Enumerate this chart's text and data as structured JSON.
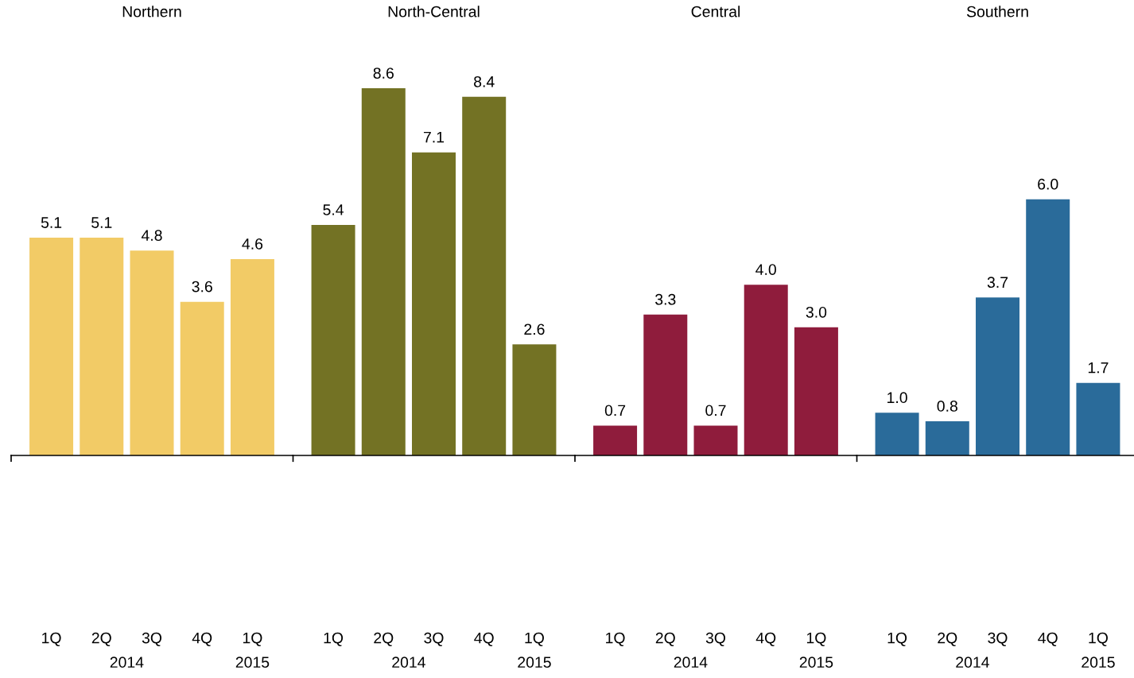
{
  "chart_data": [
    {
      "type": "bar",
      "title": "Northern",
      "categories": [
        "1Q",
        "2Q",
        "3Q",
        "4Q",
        "1Q"
      ],
      "values": [
        5.1,
        5.1,
        4.8,
        3.6,
        4.6
      ],
      "value_labels": [
        "5.1",
        "5.1",
        "4.8",
        "3.6",
        "4.6"
      ],
      "color": "#f2cb66",
      "annotations": [
        "2014",
        "2015"
      ],
      "tick_labels": "x",
      "grid": false,
      "legend": false
    },
    {
      "type": "bar",
      "title": "North-Central",
      "categories": [
        "1Q",
        "2Q",
        "3Q",
        "4Q",
        "1Q"
      ],
      "values": [
        5.4,
        8.6,
        7.1,
        8.4,
        2.6
      ],
      "value_labels": [
        "5.4",
        "8.6",
        "7.1",
        "8.4",
        "2.6"
      ],
      "color": "#737224",
      "annotations": [
        "2014",
        "2015"
      ],
      "tick_labels": "x",
      "grid": false,
      "legend": false
    },
    {
      "type": "bar",
      "title": "Central",
      "categories": [
        "1Q",
        "2Q",
        "3Q",
        "4Q",
        "1Q"
      ],
      "values": [
        0.7,
        3.3,
        0.7,
        4,
        3
      ],
      "value_labels": [
        "0.7",
        "3.3",
        "0.7",
        "4.0",
        "3.0"
      ],
      "color": "#8f1c3c",
      "annotations": [
        "2014",
        "2015"
      ],
      "tick_labels": "x",
      "grid": false,
      "legend": false
    },
    {
      "type": "bar",
      "title": "Southern",
      "categories": [
        "1Q",
        "2Q",
        "3Q",
        "4Q",
        "1Q"
      ],
      "values": [
        1,
        0.8,
        3.7,
        6,
        1.7
      ],
      "value_labels": [
        "1.0",
        "0.8",
        "3.7",
        "6.0",
        "1.7"
      ],
      "color": "#2a6b9a",
      "annotations": [
        "2014",
        "2015"
      ],
      "tick_labels": "x",
      "grid": false,
      "legend": false
    }
  ]
}
